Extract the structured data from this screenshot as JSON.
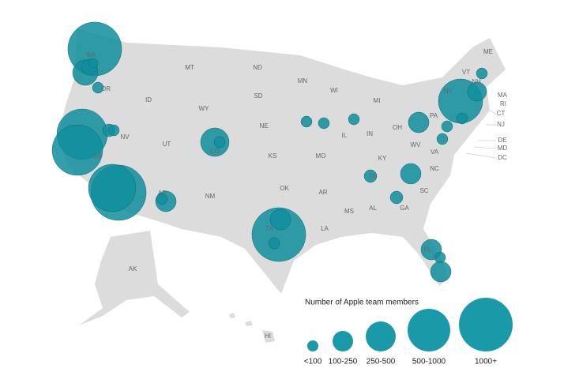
{
  "states": [
    "WA",
    "MT",
    "ND",
    "MN",
    "WI",
    "MI",
    "ME",
    "VT",
    "NH",
    "NY",
    "MA",
    "RI",
    "CT",
    "NJ",
    "PA",
    "OH",
    "IN",
    "IL",
    "SD",
    "WY",
    "ID",
    "OR",
    "NE",
    "NV",
    "UT",
    "CO",
    "KS",
    "MO",
    "KY",
    "WV",
    "VA",
    "NC",
    "DE",
    "MD",
    "DC",
    "CA",
    "TN",
    "SC",
    "OK",
    "AR",
    "NM",
    "AZ",
    "MS",
    "AL",
    "GA",
    "TX",
    "LA",
    "FL",
    "AK",
    "HI"
  ],
  "legend": {
    "title": "Number of Apple team members",
    "labels": [
      "<100",
      "100-250",
      "250-500",
      "500-1000",
      "1000+"
    ]
  }
}
